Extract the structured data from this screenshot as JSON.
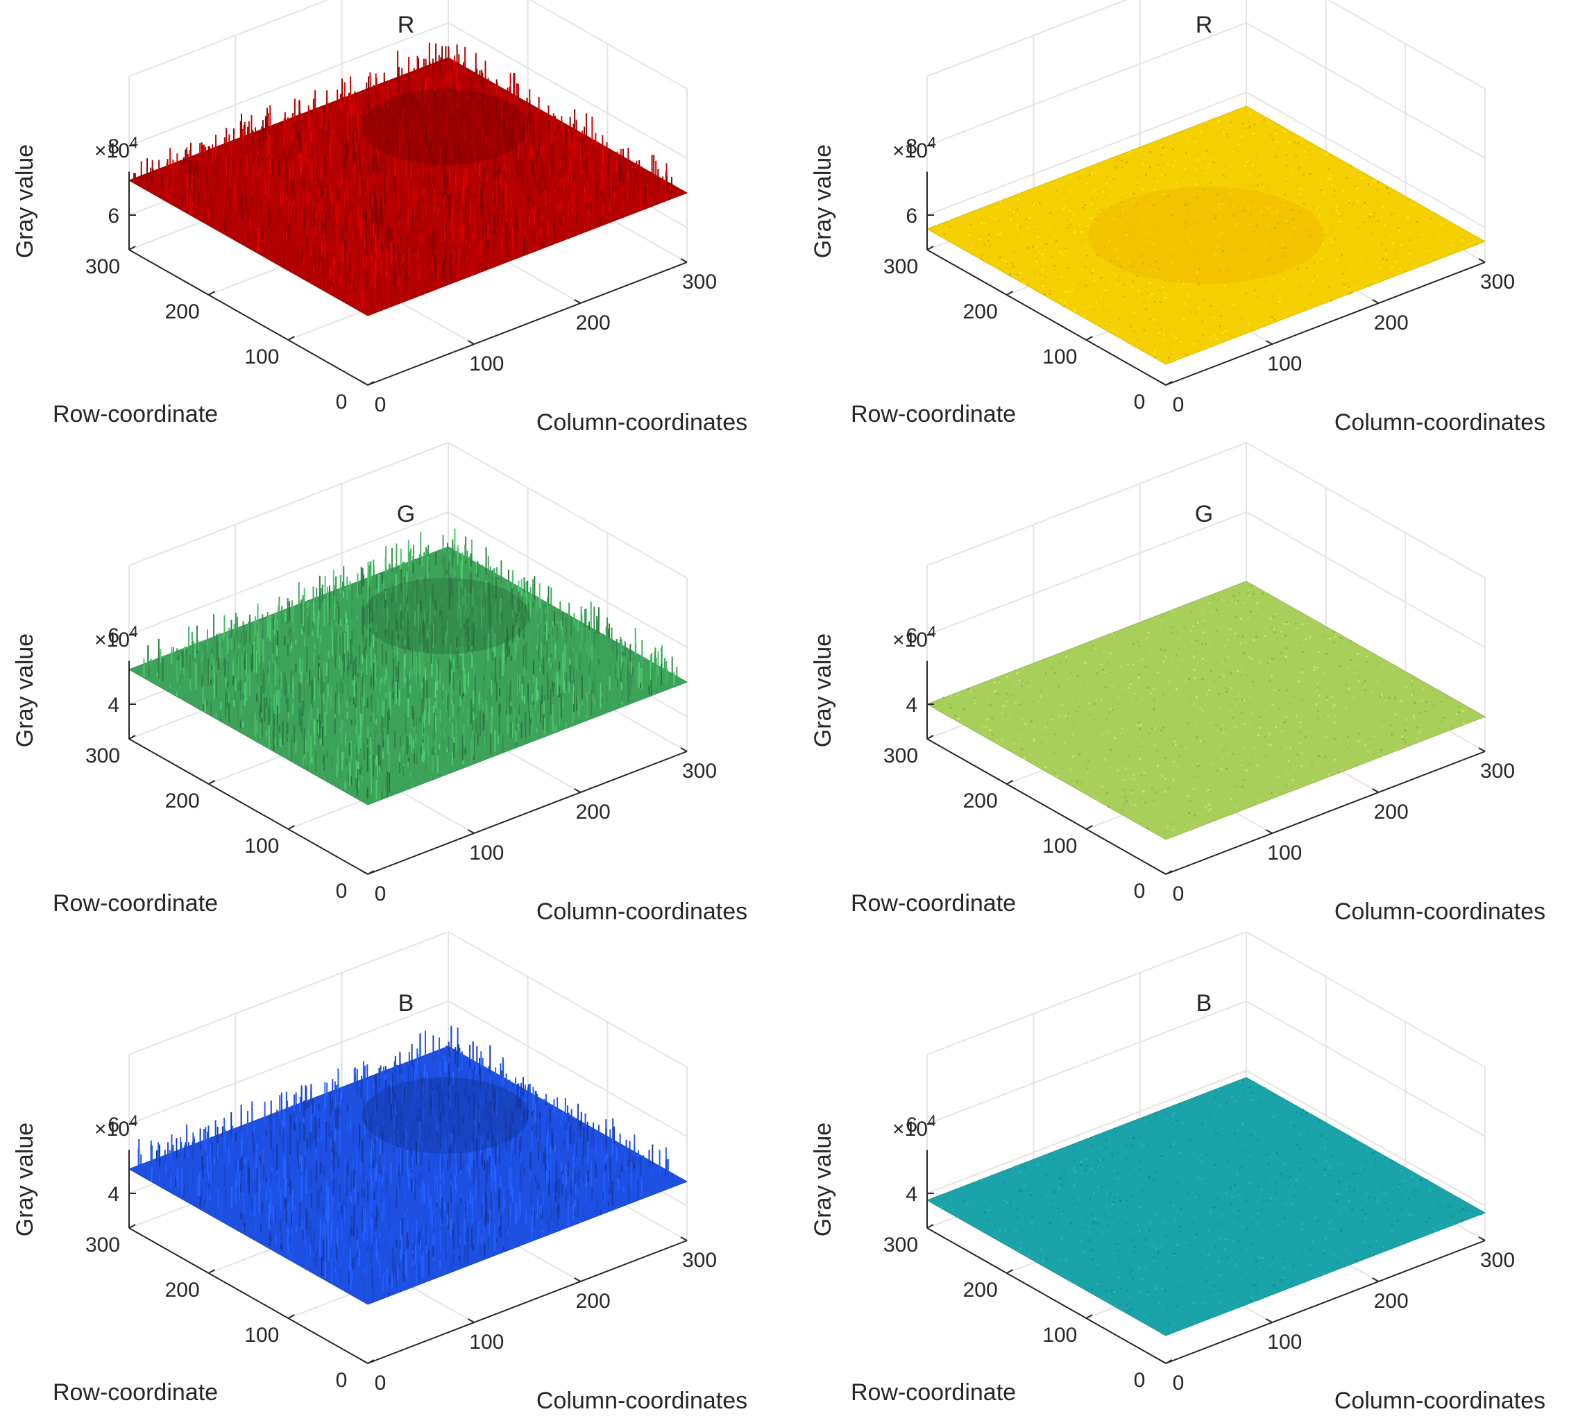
{
  "figure": {
    "panels": [
      {
        "name": "r-rough",
        "title": "R",
        "colormap": "red",
        "base_color": "#b30000",
        "noise": "high"
      },
      {
        "name": "r-flat",
        "title": "R",
        "colormap": "yellow",
        "base_color": "#f5d000",
        "noise": "low"
      },
      {
        "name": "g-rough",
        "title": "G",
        "colormap": "green",
        "base_color": "#3da35a",
        "noise": "high"
      },
      {
        "name": "g-flat",
        "title": "G",
        "colormap": "lime",
        "base_color": "#a9cf5b",
        "noise": "low"
      },
      {
        "name": "b-rough",
        "title": "B",
        "colormap": "blue",
        "base_color": "#1d4fe0",
        "noise": "high"
      },
      {
        "name": "b-flat",
        "title": "B",
        "colormap": "teal",
        "base_color": "#1aa3a8",
        "noise": "low"
      }
    ]
  },
  "chart_data": [
    {
      "type": "surface",
      "title": "R",
      "xlabel": "Column-coordinates",
      "ylabel": "Row-coordinate",
      "zlabel": "Gray value",
      "x_ticks": [
        "0",
        "100",
        "200",
        "300"
      ],
      "y_ticks": [
        "0",
        "100",
        "200",
        "300"
      ],
      "z_ticks": [
        "6",
        "8"
      ],
      "z_multiplier": "×10",
      "z_multiplier_exp": "4",
      "xlim": [
        0,
        300
      ],
      "ylim": [
        0,
        300
      ],
      "zlim": [
        5,
        10
      ],
      "z_level": 7.0,
      "grid": true
    },
    {
      "type": "surface",
      "title": "R",
      "xlabel": "Column-coordinates",
      "ylabel": "Row-coordinate",
      "zlabel": "Gray value",
      "x_ticks": [
        "0",
        "100",
        "200",
        "300"
      ],
      "y_ticks": [
        "0",
        "100",
        "200",
        "300"
      ],
      "z_ticks": [
        "6",
        "8"
      ],
      "z_multiplier": "×10",
      "z_multiplier_exp": "4",
      "xlim": [
        0,
        300
      ],
      "ylim": [
        0,
        300
      ],
      "zlim": [
        5,
        10
      ],
      "z_level": 5.6,
      "grid": true
    },
    {
      "type": "surface",
      "title": "G",
      "xlabel": "Column-coordinates",
      "ylabel": "Row-coordinate",
      "zlabel": "Gray value",
      "x_ticks": [
        "0",
        "100",
        "200",
        "300"
      ],
      "y_ticks": [
        "0",
        "100",
        "200",
        "300"
      ],
      "z_ticks": [
        "4",
        "6"
      ],
      "z_multiplier": "×10",
      "z_multiplier_exp": "4",
      "xlim": [
        0,
        300
      ],
      "ylim": [
        0,
        300
      ],
      "zlim": [
        3,
        8
      ],
      "z_level": 5.0,
      "grid": true
    },
    {
      "type": "surface",
      "title": "G",
      "xlabel": "Column-coordinates",
      "ylabel": "Row-coordinate",
      "zlabel": "Gray value",
      "x_ticks": [
        "0",
        "100",
        "200",
        "300"
      ],
      "y_ticks": [
        "0",
        "100",
        "200",
        "300"
      ],
      "z_ticks": [
        "4",
        "6"
      ],
      "z_multiplier": "×10",
      "z_multiplier_exp": "4",
      "xlim": [
        0,
        300
      ],
      "ylim": [
        0,
        300
      ],
      "zlim": [
        3,
        8
      ],
      "z_level": 4.0,
      "grid": true
    },
    {
      "type": "surface",
      "title": "B",
      "xlabel": "Column-coordinates",
      "ylabel": "Row-coordinate",
      "zlabel": "Gray value",
      "x_ticks": [
        "0",
        "100",
        "200",
        "300"
      ],
      "y_ticks": [
        "0",
        "100",
        "200",
        "300"
      ],
      "z_ticks": [
        "4",
        "6"
      ],
      "z_multiplier": "×10",
      "z_multiplier_exp": "4",
      "xlim": [
        0,
        300
      ],
      "ylim": [
        0,
        300
      ],
      "zlim": [
        3,
        8
      ],
      "z_level": 4.7,
      "grid": true
    },
    {
      "type": "surface",
      "title": "B",
      "xlabel": "Column-coordinates",
      "ylabel": "Row-coordinate",
      "zlabel": "Gray value",
      "x_ticks": [
        "0",
        "100",
        "200",
        "300"
      ],
      "y_ticks": [
        "0",
        "100",
        "200",
        "300"
      ],
      "z_ticks": [
        "4",
        "6"
      ],
      "z_multiplier": "×10",
      "z_multiplier_exp": "4",
      "xlim": [
        0,
        300
      ],
      "ylim": [
        0,
        300
      ],
      "zlim": [
        3,
        8
      ],
      "z_level": 3.8,
      "grid": true
    }
  ]
}
